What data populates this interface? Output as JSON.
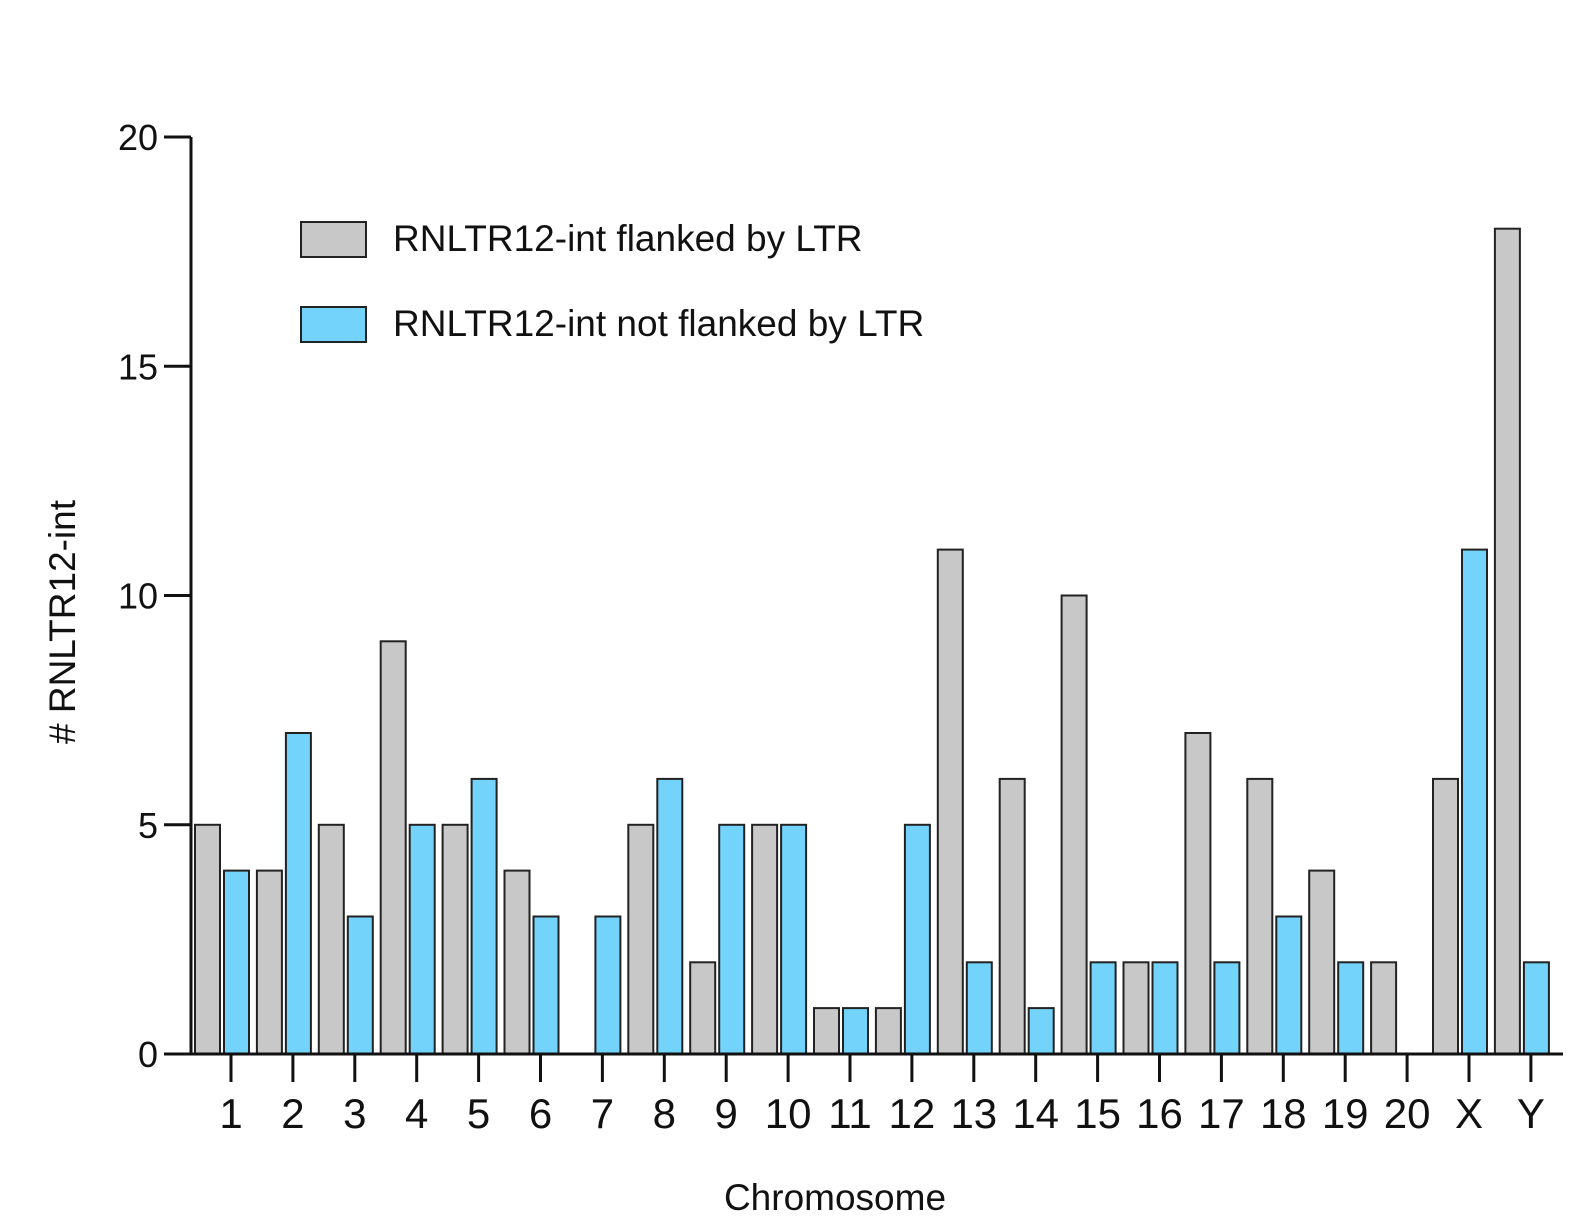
{
  "chart_data": {
    "type": "bar",
    "title": "",
    "xlabel": "Chromosome",
    "ylabel": "# RNLTR12-int",
    "ylim": [
      0,
      20
    ],
    "yticks": [
      0,
      5,
      10,
      15,
      20
    ],
    "categories": [
      "1",
      "2",
      "3",
      "4",
      "5",
      "6",
      "7",
      "8",
      "9",
      "10",
      "11",
      "12",
      "13",
      "14",
      "15",
      "16",
      "17",
      "18",
      "19",
      "20",
      "X",
      "Y"
    ],
    "series": [
      {
        "name": "RNLTR12-int flanked by LTR",
        "color": "#c8c8c8",
        "values": [
          5,
          4,
          5,
          9,
          5,
          4,
          0,
          5,
          2,
          5,
          1,
          1,
          11,
          6,
          10,
          2,
          7,
          6,
          4,
          2,
          6,
          18
        ]
      },
      {
        "name": "RNLTR12-int not flanked by LTR",
        "color": "#74d3fb",
        "values": [
          4,
          7,
          3,
          5,
          6,
          3,
          3,
          6,
          5,
          5,
          1,
          5,
          2,
          1,
          2,
          2,
          2,
          3,
          2,
          0,
          11,
          2
        ]
      }
    ],
    "legend": {
      "position": "top-left",
      "entries": [
        "RNLTR12-int flanked by LTR",
        "RNLTR12-int not flanked by LTR"
      ]
    },
    "grid": false
  }
}
